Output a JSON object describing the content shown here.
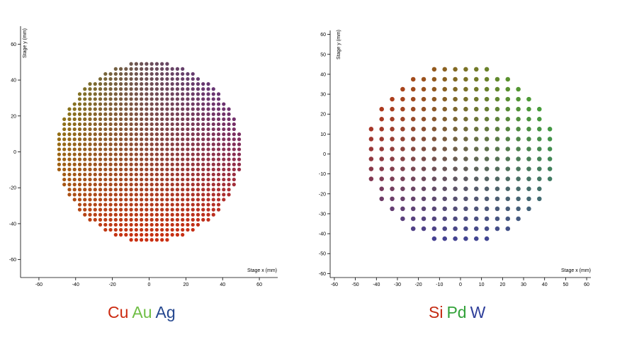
{
  "colors": {
    "cu": "#cc2a10",
    "au": "#6fbe44",
    "ag": "#25478f",
    "si": "#c42a12",
    "pd": "#33a23a",
    "w": "#2f3f9a"
  },
  "chart_data": [
    {
      "type": "scatter",
      "name": "",
      "xlabel": "Stage x (mm)",
      "ylabel": "Stage y (mm)",
      "xlim": [
        -70,
        70
      ],
      "ylim": [
        -70,
        70
      ],
      "xticks": [
        -60,
        -40,
        -20,
        0,
        20,
        40,
        60
      ],
      "yticks": [
        -60,
        -40,
        -20,
        0,
        20,
        40,
        60
      ],
      "grid": false,
      "wafer": {
        "shape": "circle",
        "pitch_mm": 2.8,
        "radius_mm": 50
      },
      "legend": [
        "Cu",
        "Au",
        "Ag"
      ],
      "gradient": {
        "note": "point color interpolates by composition",
        "bottom": "#cf2a0e",
        "left": "#7f8a12",
        "top_right": "#5a2f86"
      }
    },
    {
      "type": "scatter",
      "name": "",
      "xlabel": "Stage x (mm)",
      "ylabel": "Stage y (mm)",
      "xlim": [
        -62,
        62
      ],
      "ylim": [
        -62,
        62
      ],
      "xticks": [
        -60,
        -50,
        -40,
        -30,
        -20,
        -10,
        0,
        10,
        20,
        30,
        40,
        50,
        60
      ],
      "yticks": [
        -60,
        -50,
        -40,
        -30,
        -20,
        -10,
        0,
        10,
        20,
        30,
        40,
        50,
        60
      ],
      "grid": false,
      "wafer": {
        "shape": "circle",
        "pitch_mm": 5,
        "radius_mm": 45
      },
      "legend": [
        "Si",
        "Pd",
        "W"
      ],
      "gradient": {
        "left": "#c2300f",
        "right": "#3fae33",
        "bottom": "#3a3aa6"
      }
    }
  ],
  "captions": {
    "left": [
      "Cu",
      "Au",
      "Ag"
    ],
    "right": [
      "Si",
      "Pd",
      "W"
    ]
  }
}
